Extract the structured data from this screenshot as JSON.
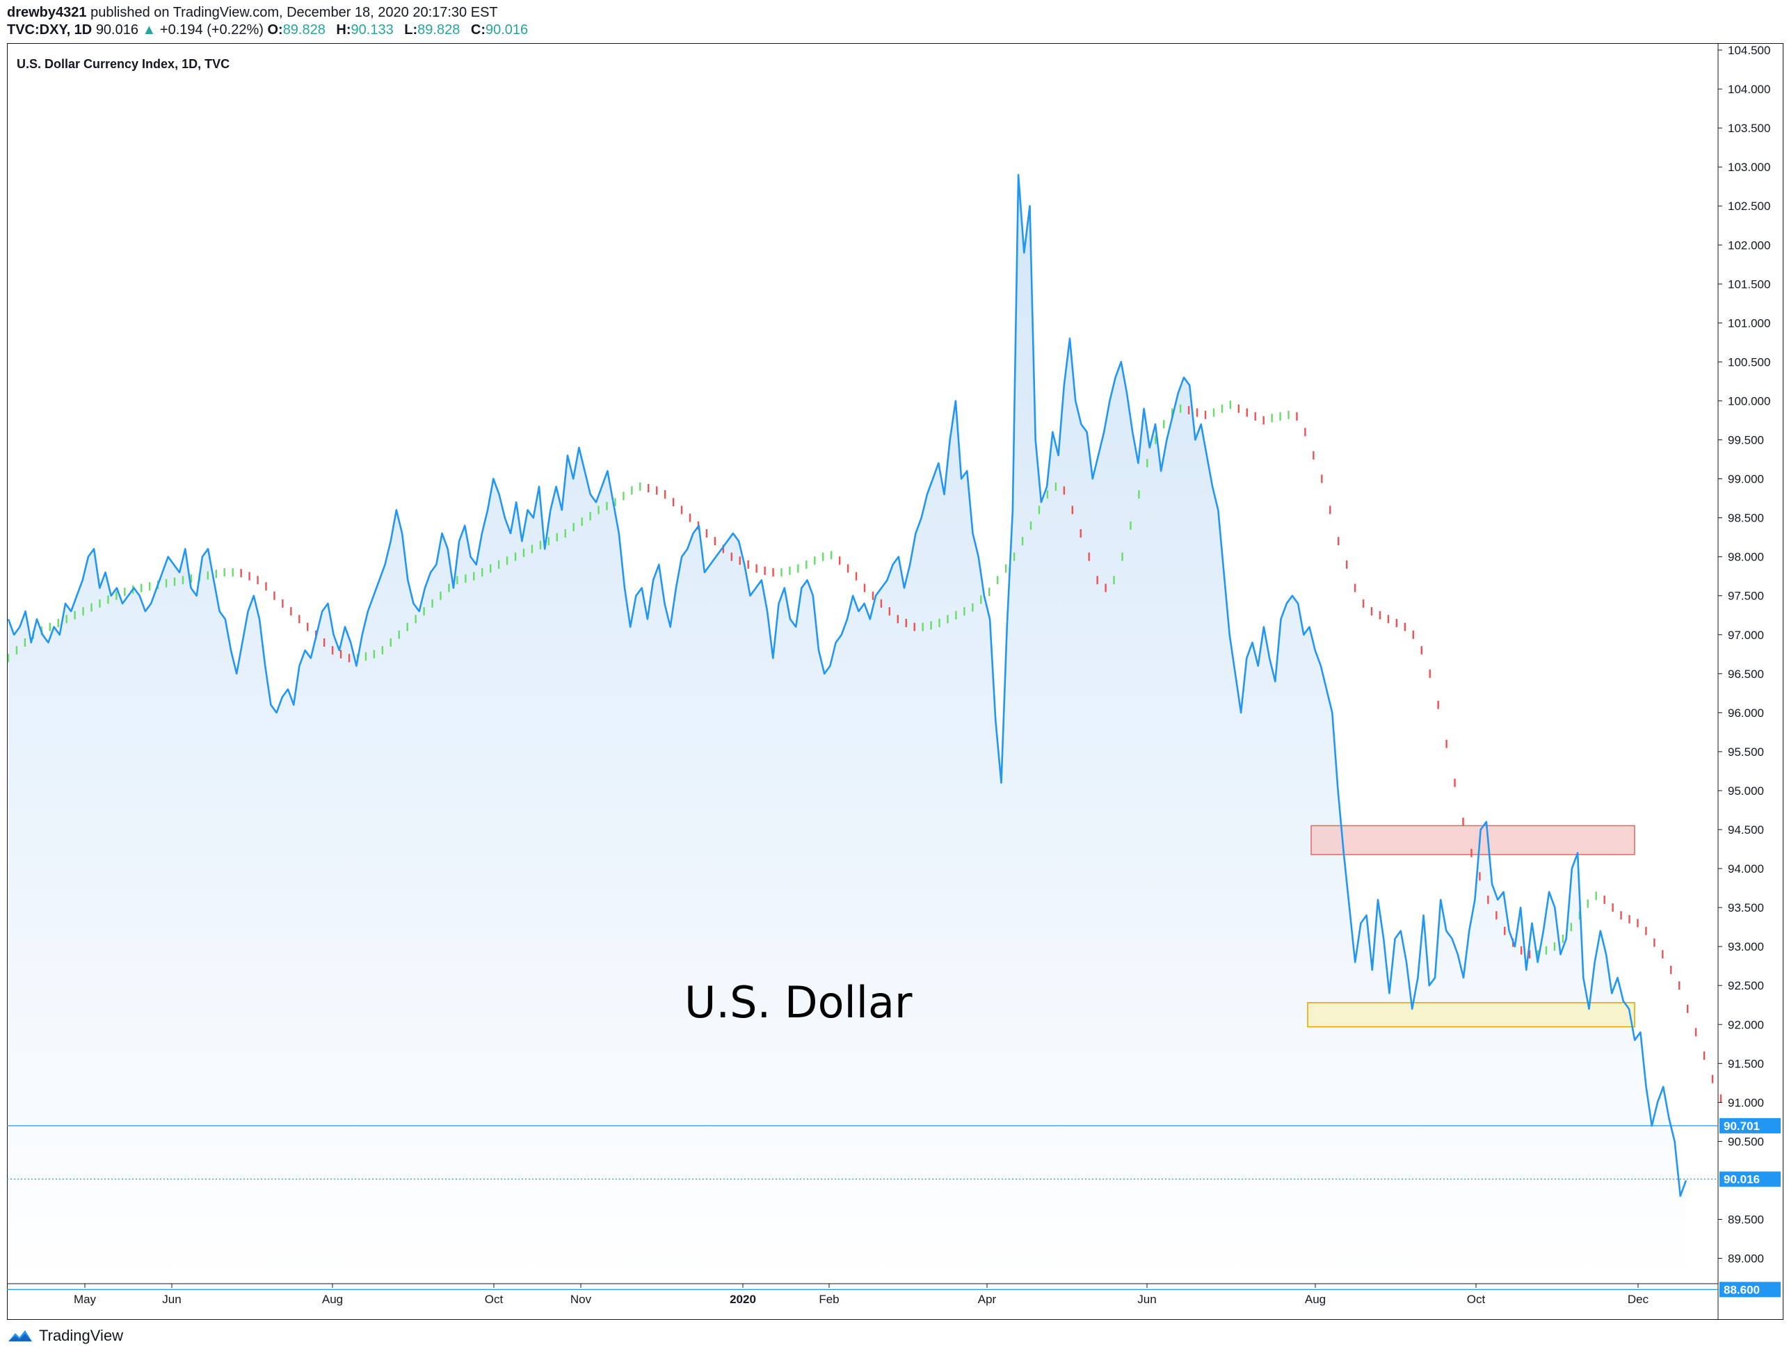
{
  "header": {
    "author": "drewby4321",
    "published": "published on TradingView.com, December 18, 2020 20:17:30 EST",
    "symbol": "TVC:DXY, 1D",
    "last": "90.016",
    "change": "+0.194 (+0.22%)",
    "o_label": "O:",
    "o": "89.828",
    "h_label": "H:",
    "h": "90.133",
    "l_label": "L:",
    "l": "89.828",
    "c_label": "C:",
    "c": "90.016"
  },
  "footer": {
    "brand": "TradingView"
  },
  "chart_data": {
    "type": "area",
    "title": "U.S. Dollar Currency Index, 1D, TVC",
    "annotation": "U.S. Dollar",
    "ylim": [
      88.5,
      104.6
    ],
    "y_ticks": [
      "104.500",
      "104.000",
      "103.500",
      "103.000",
      "102.500",
      "102.000",
      "101.500",
      "101.000",
      "100.500",
      "100.000",
      "99.500",
      "99.000",
      "98.500",
      "98.000",
      "97.500",
      "97.000",
      "96.500",
      "96.000",
      "95.500",
      "95.000",
      "94.500",
      "94.000",
      "93.500",
      "93.000",
      "92.500",
      "92.000",
      "91.500",
      "91.000",
      "90.500",
      "89.500",
      "89.000"
    ],
    "x_ticks": [
      "May",
      "Jun",
      "Aug",
      "Oct",
      "Nov",
      "2020",
      "Feb",
      "Apr",
      "Jun",
      "Aug",
      "Oct",
      "Dec"
    ],
    "x_tick_bold": [
      "2020"
    ],
    "series": [
      {
        "values": [
          97.2,
          97.0,
          97.1,
          97.3,
          96.9,
          97.2,
          97.0,
          96.9,
          97.1,
          97.0,
          97.4,
          97.3,
          97.5,
          97.7,
          98.0,
          98.1,
          97.6,
          97.8,
          97.5,
          97.6,
          97.4,
          97.5,
          97.6,
          97.5,
          97.3,
          97.4,
          97.6,
          97.8,
          98.0,
          97.9,
          97.8,
          98.1,
          97.6,
          97.5,
          98.0,
          98.1,
          97.7,
          97.3,
          97.2,
          96.8,
          96.5,
          96.9,
          97.3,
          97.5,
          97.2,
          96.6,
          96.1,
          96.0,
          96.2,
          96.3,
          96.1,
          96.6,
          96.8,
          96.7,
          97.0,
          97.3,
          97.4,
          97.0,
          96.8,
          97.1,
          96.9,
          96.6,
          97.0,
          97.3,
          97.5,
          97.7,
          97.9,
          98.2,
          98.6,
          98.3,
          97.7,
          97.4,
          97.3,
          97.6,
          97.8,
          97.9,
          98.3,
          98.1,
          97.6,
          98.2,
          98.4,
          98.0,
          97.9,
          98.3,
          98.6,
          99.0,
          98.8,
          98.5,
          98.3,
          98.7,
          98.2,
          98.6,
          98.5,
          98.9,
          98.1,
          98.6,
          98.9,
          98.6,
          99.3,
          99.0,
          99.4,
          99.1,
          98.8,
          98.7,
          98.9,
          99.1,
          98.7,
          98.3,
          97.6,
          97.1,
          97.5,
          97.6,
          97.2,
          97.7,
          97.9,
          97.4,
          97.1,
          97.6,
          98.0,
          98.1,
          98.3,
          98.4,
          97.8,
          97.9,
          98.0,
          98.1,
          98.2,
          98.3,
          98.2,
          97.9,
          97.5,
          97.6,
          97.7,
          97.3,
          96.7,
          97.4,
          97.6,
          97.2,
          97.1,
          97.6,
          97.7,
          97.5,
          96.8,
          96.5,
          96.6,
          96.9,
          97.0,
          97.2,
          97.5,
          97.3,
          97.4,
          97.2,
          97.5,
          97.6,
          97.7,
          97.9,
          98.0,
          97.6,
          97.9,
          98.3,
          98.5,
          98.8,
          99.0,
          99.2,
          98.8,
          99.5,
          100.0,
          99.0,
          99.1,
          98.3,
          98.0,
          97.5,
          97.2,
          95.9,
          95.1,
          97.1,
          98.6,
          102.9,
          101.9,
          102.5,
          99.5,
          98.7,
          98.9,
          99.6,
          99.3,
          100.2,
          100.8,
          100.0,
          99.7,
          99.6,
          99.0,
          99.3,
          99.6,
          100.0,
          100.3,
          100.5,
          100.1,
          99.6,
          99.2,
          99.9,
          99.4,
          99.7,
          99.1,
          99.5,
          99.8,
          100.1,
          100.3,
          100.2,
          99.5,
          99.7,
          99.3,
          98.9,
          98.6,
          97.8,
          97.0,
          96.5,
          96.0,
          96.7,
          96.9,
          96.6,
          97.1,
          96.7,
          96.4,
          97.2,
          97.4,
          97.5,
          97.4,
          97.0,
          97.1,
          96.8,
          96.6,
          96.3,
          96.0,
          95.0,
          94.2,
          93.5,
          92.8,
          93.3,
          93.4,
          92.7,
          93.6,
          93.1,
          92.4,
          93.1,
          93.2,
          92.8,
          92.2,
          92.6,
          93.4,
          92.5,
          92.6,
          93.6,
          93.2,
          93.1,
          92.9,
          92.6,
          93.2,
          93.6,
          94.5,
          94.6,
          93.8,
          93.6,
          93.7,
          93.2,
          93.0,
          93.5,
          92.7,
          93.3,
          92.8,
          93.2,
          93.7,
          93.5,
          92.9,
          93.1,
          94.0,
          94.2,
          92.6,
          92.2,
          92.8,
          93.2,
          92.9,
          92.4,
          92.6,
          92.3,
          92.2,
          91.8,
          91.9,
          91.2,
          90.7,
          91.0,
          91.2,
          90.8,
          90.5,
          89.8,
          90.0
        ],
        "style": "line-with-area"
      }
    ],
    "indicator": {
      "name": "",
      "values": [
        96.7,
        96.8,
        96.9,
        97.0,
        97.05,
        97.1,
        97.15,
        97.2,
        97.25,
        97.3,
        97.35,
        97.4,
        97.45,
        97.5,
        97.55,
        97.58,
        97.6,
        97.62,
        97.64,
        97.66,
        97.68,
        97.7,
        97.72,
        97.74,
        97.76,
        97.78,
        97.8,
        97.8,
        97.79,
        97.75,
        97.7,
        97.62,
        97.5,
        97.4,
        97.3,
        97.2,
        97.1,
        97.0,
        96.9,
        96.8,
        96.75,
        96.7,
        96.7,
        96.72,
        96.75,
        96.8,
        96.9,
        97.0,
        97.1,
        97.2,
        97.3,
        97.4,
        97.5,
        97.6,
        97.7,
        97.72,
        97.75,
        97.8,
        97.85,
        97.9,
        97.95,
        98.0,
        98.05,
        98.1,
        98.15,
        98.2,
        98.25,
        98.3,
        98.38,
        98.45,
        98.52,
        98.6,
        98.65,
        98.7,
        98.78,
        98.85,
        98.9,
        98.88,
        98.85,
        98.8,
        98.7,
        98.6,
        98.5,
        98.4,
        98.3,
        98.2,
        98.1,
        98.0,
        97.95,
        97.9,
        97.85,
        97.82,
        97.8,
        97.8,
        97.82,
        97.85,
        97.9,
        97.95,
        98.0,
        98.02,
        97.95,
        97.85,
        97.75,
        97.6,
        97.5,
        97.4,
        97.3,
        97.2,
        97.15,
        97.1,
        97.1,
        97.12,
        97.15,
        97.2,
        97.25,
        97.3,
        97.35,
        97.45,
        97.55,
        97.7,
        97.85,
        98.0,
        98.2,
        98.4,
        98.6,
        98.8,
        98.9,
        98.85,
        98.6,
        98.3,
        98.0,
        97.7,
        97.6,
        97.7,
        98.0,
        98.4,
        98.8,
        99.2,
        99.5,
        99.7,
        99.85,
        99.9,
        99.88,
        99.85,
        99.82,
        99.85,
        99.9,
        99.95,
        99.9,
        99.85,
        99.8,
        99.75,
        99.78,
        99.8,
        99.82,
        99.8,
        99.6,
        99.3,
        99.0,
        98.6,
        98.2,
        97.9,
        97.6,
        97.4,
        97.3,
        97.25,
        97.2,
        97.15,
        97.1,
        97.0,
        96.8,
        96.5,
        96.1,
        95.6,
        95.1,
        94.6,
        94.2,
        93.9,
        93.6,
        93.4,
        93.2,
        93.05,
        92.95,
        92.9,
        92.9,
        92.95,
        93.0,
        93.1,
        93.25,
        93.4,
        93.55,
        93.65,
        93.6,
        93.5,
        93.4,
        93.35,
        93.3,
        93.2,
        93.05,
        92.9,
        92.7,
        92.5,
        92.2,
        91.9,
        91.6,
        91.3,
        91.05
      ],
      "up_color": "#66dd66",
      "down_color": "#f05050"
    },
    "boxes": [
      {
        "y_top": 94.55,
        "y_bottom": 94.18,
        "fill": "#f4cccc",
        "stroke": "#e06666"
      },
      {
        "y_top": 92.28,
        "y_bottom": 91.97,
        "fill": "#f6f2c4",
        "stroke": "#e6a100"
      }
    ],
    "h_lines": [
      {
        "value": 90.701,
        "label": "90.701",
        "style": "solid"
      },
      {
        "value": 90.016,
        "label": "90.016",
        "style": "dotted"
      },
      {
        "value": 88.6,
        "label": "88.600",
        "style": "solid"
      }
    ],
    "colors": {
      "line": "#2196f3",
      "area_top": "#cfe4f8",
      "area_bottom": "#ffffff",
      "label_bg": "#2196f3"
    },
    "grid": false
  }
}
